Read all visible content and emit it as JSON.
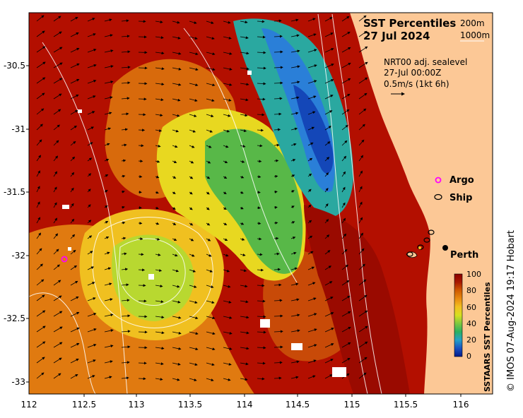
{
  "map": {
    "title": "SST Percentiles",
    "date": "27 Jul 2024",
    "contour_levels": [
      "200m",
      "1000m"
    ],
    "current_source": "NRT00 adj. sealevel",
    "current_time": "27-Jul 00:00Z",
    "current_scale": "0.5m/s (1kt 6h)",
    "x_ticks": [
      "112",
      "112.5",
      "113",
      "113.5",
      "114",
      "114.5",
      "115",
      "115.5",
      "116"
    ],
    "y_ticks": [
      "-30.5",
      "-31",
      "-31.5",
      "-32",
      "-32.5",
      "-33"
    ],
    "legend": {
      "argo": "Argo",
      "ship": "Ship"
    },
    "place": "Perth",
    "colorbar": {
      "label": "SSTAARS SST Percentiles",
      "ticks": [
        "100",
        "80",
        "60",
        "40",
        "20",
        "0"
      ],
      "colors": [
        "#8b0000",
        "#c03a00",
        "#e07a10",
        "#f2b020",
        "#e6e619",
        "#a8d63a",
        "#49b84a",
        "#2aa8a0",
        "#2a7fd8",
        "#1447b8",
        "#001a8a"
      ]
    },
    "credit": "© IMOS 07-Aug-2024 19:17 Hobart",
    "colors": {
      "land": "#fcc896",
      "ocean_low": "#001a8a",
      "ocean_high": "#8b0000",
      "argo": "#ff00ff"
    }
  }
}
